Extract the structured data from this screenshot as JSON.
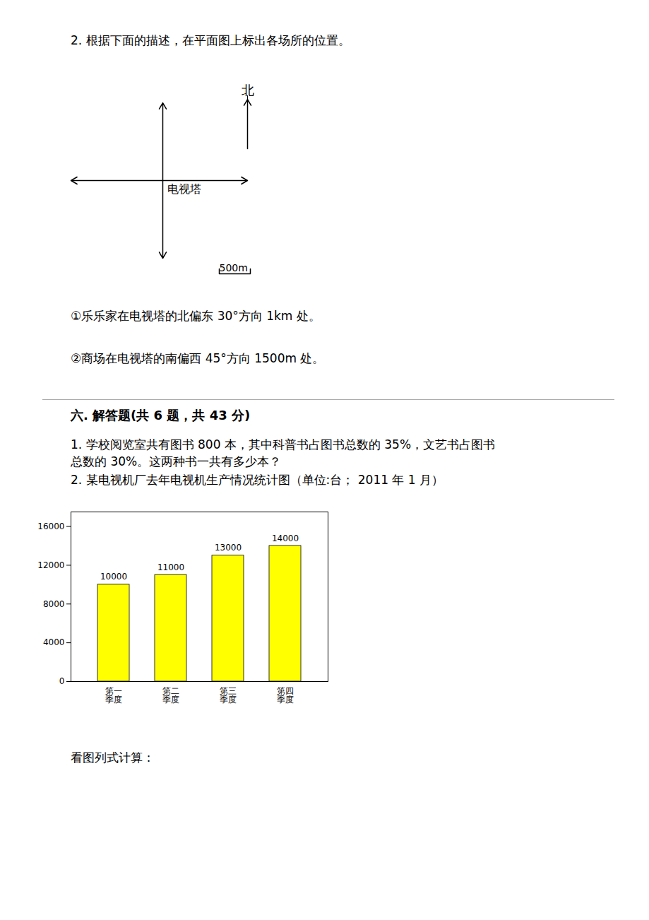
{
  "chart_data": {
    "type": "bar",
    "title": "2. 某电视机厂去年电视机生产情况统计图（单位:台；  2011 年 1 月）",
    "categories": [
      "第一\n季度",
      "第二\n季度",
      "第三\n季度",
      "第四\n季度"
    ],
    "values": [
      10000,
      11000,
      13000,
      14000
    ],
    "color": "#ffff00",
    "ylim": [
      0,
      17500
    ],
    "yticks": [
      0,
      4000,
      8000,
      12000,
      16000
    ],
    "grid": false,
    "data_labels": true,
    "annotations": [
      "2. 根据下面的描述，在平面图上标出各场所的位置。",
      "北",
      "电视塔",
      "500m",
      "①乐乐家在电视塔的北偏东 30°方向 1km 处。",
      "②商场在电视塔的南偏西 45°方向 1500m 处。",
      "六. 解答题(共 6 题，共 43 分)",
      "1. 学校阅览室共有图书 800 本，其中科普书占图书总数的 35%，文艺书占图书",
      "总数的 30%。这两种书一共有多少本？",
      "看图列式计算："
    ]
  }
}
